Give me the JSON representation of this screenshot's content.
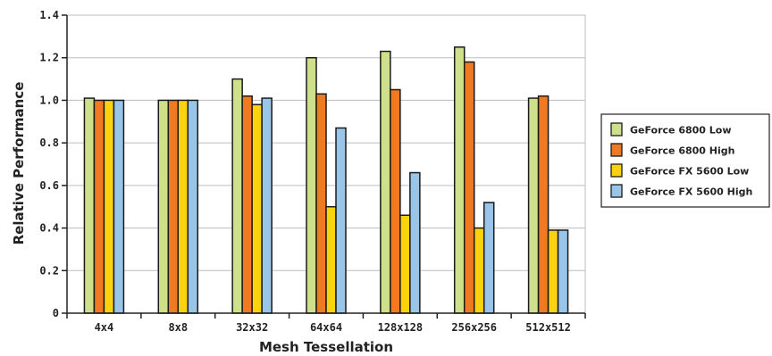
{
  "chart_data": {
    "type": "bar",
    "title": "",
    "xlabel": "Mesh Tessellation",
    "ylabel": "Relative Performance",
    "ylim": [
      0,
      1.4
    ],
    "yticks": [
      "0",
      "0.2",
      "0.4",
      "0.6",
      "0.8",
      "1.0",
      "1.2",
      "1.4"
    ],
    "categories": [
      "4x4",
      "8x8",
      "32x32",
      "64x64",
      "128x128",
      "256x256",
      "512x512"
    ],
    "grid": true,
    "legend_position": "right",
    "series": [
      {
        "name": "GeForce 6800 Low",
        "color": "#cfe08a",
        "values": [
          1.01,
          1.0,
          1.1,
          1.2,
          1.23,
          1.25,
          1.01
        ]
      },
      {
        "name": "GeForce 6800 High",
        "color": "#f07a22",
        "values": [
          1.0,
          1.0,
          1.02,
          1.03,
          1.05,
          1.18,
          1.02
        ]
      },
      {
        "name": "GeForce FX 5600 Low",
        "color": "#fbd20e",
        "values": [
          1.0,
          1.0,
          0.98,
          0.5,
          0.46,
          0.4,
          0.39
        ]
      },
      {
        "name": "GeForce FX 5600 High",
        "color": "#98c5e8",
        "values": [
          1.0,
          1.0,
          1.01,
          0.87,
          0.66,
          0.52,
          0.39
        ]
      }
    ]
  }
}
